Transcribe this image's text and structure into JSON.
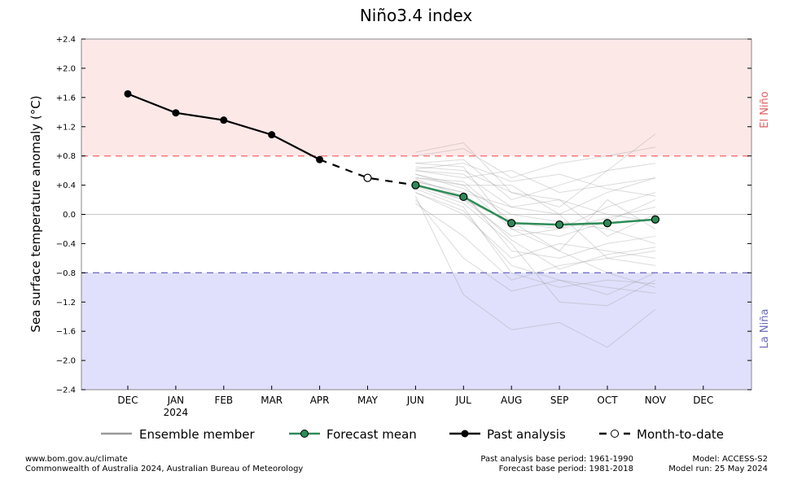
{
  "chart_data": {
    "type": "line",
    "title": "Niño3.4 index",
    "ylabel": "Sea surface temperature anomaly (°C)",
    "xlabel": "",
    "ylim": [
      -2.4,
      2.4
    ],
    "yticks": [
      2.4,
      2.0,
      1.6,
      1.2,
      0.8,
      0.4,
      0.0,
      -0.4,
      -0.8,
      -1.2,
      -1.6,
      -2.0,
      -2.4
    ],
    "ytick_labels": [
      "+2.4",
      "+2.0",
      "+1.6",
      "+1.2",
      "+0.8",
      "+0.4",
      "0.0",
      "−0.4",
      "−0.8",
      "−1.2",
      "−1.6",
      "−2.0",
      "−2.4"
    ],
    "categories": [
      "DEC",
      "JAN",
      "FEB",
      "MAR",
      "APR",
      "MAY",
      "JUN",
      "JUL",
      "AUG",
      "SEP",
      "OCT",
      "NOV",
      "DEC"
    ],
    "year_label": "2024",
    "thresholds": {
      "el_nino": 0.8,
      "la_nina": -0.8
    },
    "region_labels": {
      "el_nino": "El Niño",
      "la_nina": "La Niña"
    },
    "past_analysis": {
      "name": "Past analysis",
      "start_index": 0,
      "values": [
        1.65,
        1.39,
        1.29,
        1.09,
        0.75
      ]
    },
    "month_to_date": {
      "name": "Month-to-date",
      "index": 5,
      "value": 0.5
    },
    "forecast_mean": {
      "name": "Forecast mean",
      "start_index": 6,
      "values": [
        0.4,
        0.24,
        -0.12,
        -0.14,
        -0.12,
        -0.07
      ]
    },
    "ensemble": {
      "name": "Ensemble member",
      "start_index": 6,
      "members": [
        [
          0.85,
          0.98,
          0.3,
          0.1,
          0.6,
          1.1
        ],
        [
          0.8,
          0.9,
          0.5,
          0.7,
          0.8,
          0.92
        ],
        [
          0.7,
          0.75,
          0.2,
          0.4,
          0.6,
          0.7
        ],
        [
          0.6,
          0.55,
          0.1,
          0.0,
          0.3,
          0.5
        ],
        [
          0.5,
          0.4,
          -0.2,
          -0.3,
          -0.1,
          0.2
        ],
        [
          0.45,
          0.3,
          -0.5,
          -0.6,
          -0.4,
          -0.3
        ],
        [
          0.4,
          0.2,
          -0.3,
          -0.2,
          0.1,
          0.3
        ],
        [
          0.35,
          0.1,
          -0.8,
          -1.0,
          -0.9,
          -0.95
        ],
        [
          0.3,
          0.0,
          -0.6,
          -0.4,
          -0.5,
          -0.6
        ],
        [
          0.55,
          0.35,
          0.0,
          -0.1,
          -0.2,
          -0.4
        ],
        [
          0.25,
          -1.1,
          -1.58,
          -1.48,
          -1.82,
          -1.3
        ],
        [
          0.2,
          -0.6,
          -1.05,
          -0.9,
          -1.0,
          -1.08
        ],
        [
          0.65,
          0.6,
          0.3,
          0.2,
          0.0,
          -0.1
        ],
        [
          0.5,
          0.45,
          -0.1,
          -0.5,
          -0.8,
          -1.0
        ],
        [
          0.38,
          0.15,
          -0.4,
          -1.2,
          -1.25,
          -0.9
        ],
        [
          0.6,
          0.5,
          0.6,
          0.3,
          0.4,
          0.5
        ],
        [
          0.15,
          -0.3,
          -0.9,
          -0.7,
          -0.6,
          -0.5
        ],
        [
          0.45,
          0.3,
          0.1,
          0.2,
          -0.3,
          0.0
        ],
        [
          0.7,
          0.65,
          -0.2,
          -0.5,
          0.2,
          -0.2
        ],
        [
          0.3,
          0.05,
          -0.7,
          -0.9,
          -1.1,
          -0.8
        ],
        [
          0.55,
          0.4,
          0.4,
          0.0,
          -0.6,
          -0.7
        ],
        [
          0.42,
          0.2,
          -0.1,
          -0.2,
          -0.05,
          0.1
        ],
        [
          0.62,
          0.7,
          0.45,
          0.55,
          0.35,
          0.25
        ],
        [
          0.48,
          0.25,
          -0.35,
          -0.75,
          -0.55,
          -0.45
        ]
      ]
    },
    "legend": [
      "Ensemble member",
      "Forecast mean",
      "Past analysis",
      "Month-to-date"
    ],
    "legend_position": "bottom",
    "colors": {
      "el_nino_bg": "#fde8e8",
      "la_nina_bg": "#e0e0fc",
      "el_nino_line": "#ff7070",
      "la_nina_line": "#7070c8",
      "forecast": "#2e8b57",
      "ensemble": "#999999",
      "el_nino_text": "#e06060",
      "la_nina_text": "#6a6ab8"
    }
  },
  "footer": {
    "url": "www.bom.gov.au/climate",
    "copyright": "Commonwealth of Australia 2024, Australian Bureau of Meteorology",
    "past_base": "Past analysis base period: 1961-1990",
    "forecast_base": "Forecast base period: 1981-2018",
    "model": "Model: ACCESS-S2",
    "model_run": "Model run: 25 May 2024"
  }
}
